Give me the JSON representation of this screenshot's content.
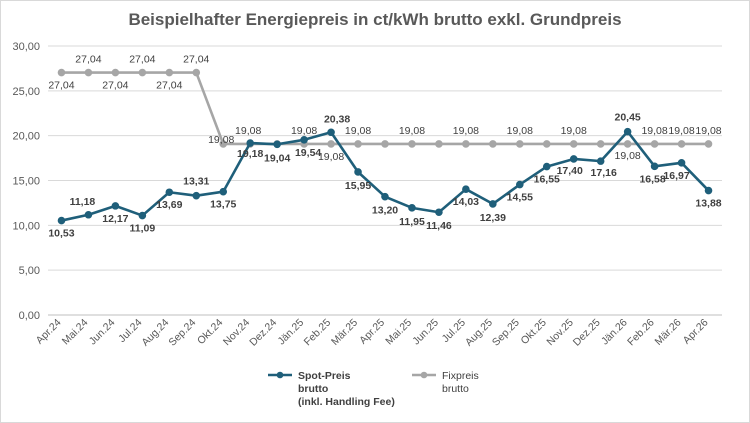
{
  "chart_data": {
    "type": "line",
    "title": "Beispielhafter Energiepreis in ct/kWh brutto exkl. Grundpreis",
    "xlabel": "",
    "ylabel": "",
    "ylim": [
      0,
      30
    ],
    "yticks": [
      "0,00",
      "5,00",
      "10,00",
      "15,00",
      "20,00",
      "25,00",
      "30,00"
    ],
    "grid": true,
    "legend_position": "bottom",
    "categories": [
      "Apr.24",
      "Mai.24",
      "Jun.24",
      "Jul.24",
      "Aug.24",
      "Sep.24",
      "Okt.24",
      "Nov.24",
      "Dez.24",
      "Jän.25",
      "Feb.25",
      "Mär.25",
      "Apr.25",
      "Mai.25",
      "Jun.25",
      "Jul.25",
      "Aug.25",
      "Sep.25",
      "Okt.25",
      "Nov.25",
      "Dez.25",
      "Jän.26",
      "Feb.26",
      "Mär.26",
      "Apr.26"
    ],
    "series": [
      {
        "name": "Spot-Preis brutto (inkl. Handling Fee)",
        "legend_lines": [
          "Spot-Preis",
          "brutto",
          "(inkl. Handling Fee)"
        ],
        "color": "#1f5f7a",
        "values": [
          10.53,
          11.18,
          12.17,
          11.09,
          13.69,
          13.31,
          13.75,
          19.18,
          19.04,
          19.54,
          20.38,
          15.95,
          13.2,
          11.95,
          11.46,
          14.03,
          12.39,
          14.55,
          16.55,
          17.4,
          17.16,
          20.45,
          16.58,
          16.97,
          13.88
        ],
        "labels": [
          "10,53",
          "11,18",
          "12,17",
          "11,09",
          "13,69",
          "13,31",
          "13,75",
          "19,18",
          "19,04",
          "19,54",
          "20,38",
          "15,95",
          "13,20",
          "11,95",
          "11,46",
          "14,03",
          "12,39",
          "14,55",
          "16,55",
          "17,40",
          "17,16",
          "20,45",
          "16,58",
          "16,97",
          "13,88"
        ]
      },
      {
        "name": "Fixpreis brutto",
        "legend_lines": [
          "Fixpreis",
          "brutto"
        ],
        "color": "#a6a6a6",
        "values": [
          27.04,
          27.04,
          27.04,
          27.04,
          27.04,
          27.04,
          19.08,
          19.08,
          19.08,
          19.08,
          19.08,
          19.08,
          19.08,
          19.08,
          19.08,
          19.08,
          19.08,
          19.08,
          19.08,
          19.08,
          19.08,
          19.08,
          19.08,
          19.08,
          19.08
        ],
        "labels": [
          "27,04",
          "27,04",
          "27,04",
          "27,04",
          "27,04",
          "27,04",
          "19,08",
          "19,08",
          "19,08",
          "19,08",
          "19,08",
          "19,08",
          "19,08",
          "19,08",
          "19,08",
          "19,08",
          "19,08",
          "19,08",
          "19,08",
          "19,08",
          "19,08",
          "19,08",
          "19,08",
          "19,08",
          "19,08"
        ]
      }
    ]
  }
}
